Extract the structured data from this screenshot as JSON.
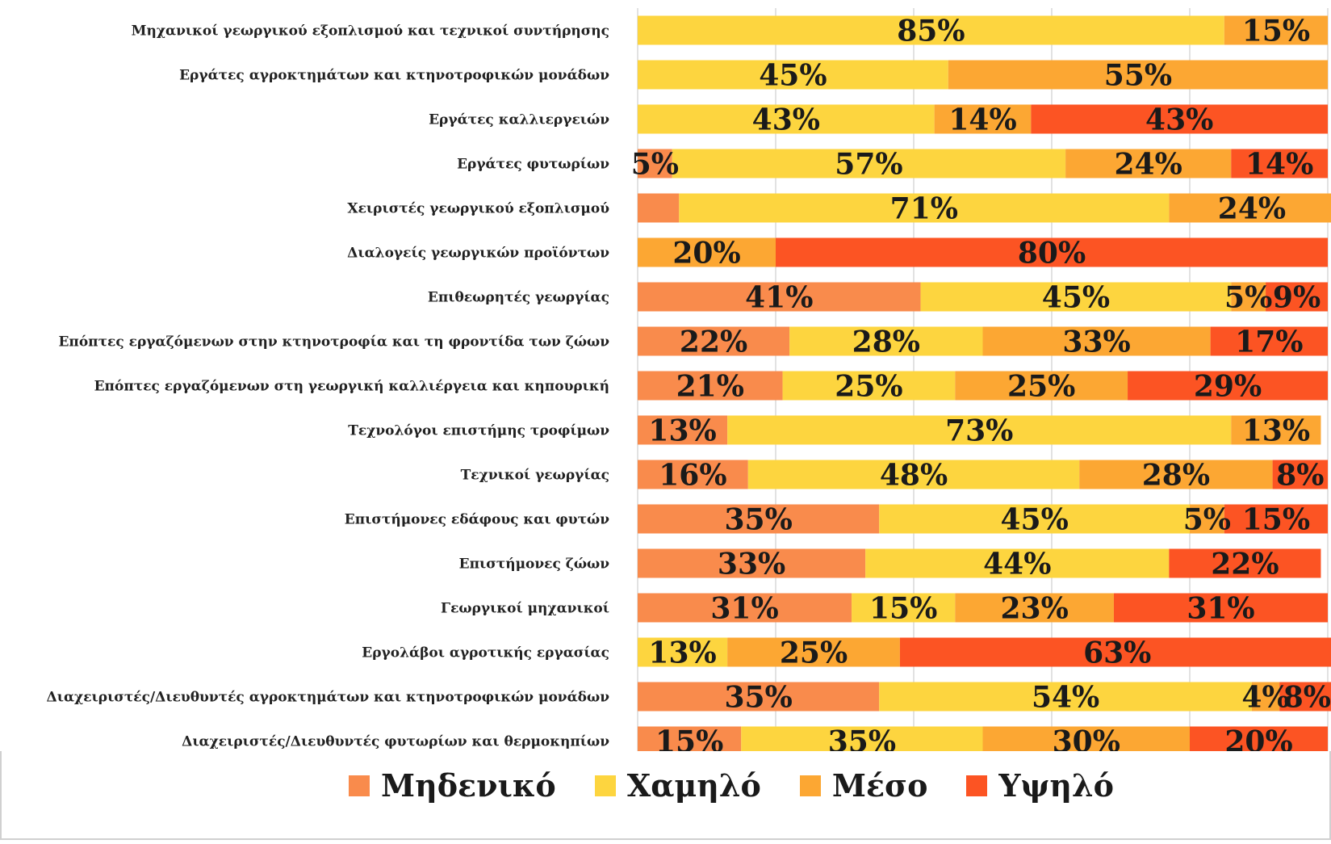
{
  "chart_data": {
    "type": "bar",
    "orientation": "horizontal",
    "stacked": true,
    "percent": true,
    "xlim": [
      0,
      100
    ],
    "grid": true,
    "legend_position": "bottom",
    "categories": [
      "Μηχανικοί γεωργικού εξοπλισμού και τεχνικοί συντήρησης",
      "Εργάτες αγροκτημάτων και κτηνοτροφικών μονάδων",
      "Εργάτες καλλιεργειών",
      "Εργάτες φυτωρίων",
      "Χειριστές γεωργικού εξοπλισμού",
      "Διαλογείς γεωργικών προϊόντων",
      "Επιθεωρητές γεωργίας",
      "Επόπτες εργαζόμενων στην κτηνοτροφία και τη φροντίδα των ζώων",
      "Επόπτες εργαζόμενων στη γεωργική καλλιέργεια και κηπουρική",
      "Τεχνολόγοι επιστήμης τροφίμων",
      "Τεχνικοί γεωργίας",
      "Επιστήμονες εδάφους και φυτών",
      "Επιστήμονες ζώων",
      "Γεωργικοί μηχανικοί",
      "Εργολάβοι αγροτικής εργασίας",
      "Διαχειριστές/Διευθυντές αγροκτημάτων και κτηνοτροφικών μονάδων",
      "Διαχειριστές/Διευθυντές φυτωρίων και θερμοκηπίων"
    ],
    "series": [
      {
        "name": "Μηδενικό",
        "color": "#f98b4c",
        "values": [
          0,
          0,
          0,
          5,
          6,
          0,
          41,
          22,
          21,
          13,
          16,
          35,
          33,
          31,
          0,
          35,
          15
        ]
      },
      {
        "name": "Χαμηλό",
        "color": "#fdd53f",
        "values": [
          85,
          45,
          43,
          57,
          71,
          0,
          45,
          28,
          25,
          73,
          48,
          45,
          44,
          15,
          13,
          54,
          35
        ]
      },
      {
        "name": "Μέσο",
        "color": "#fca733",
        "values": [
          15,
          55,
          14,
          24,
          24,
          20,
          5,
          33,
          25,
          13,
          28,
          5,
          0,
          23,
          25,
          4,
          30
        ]
      },
      {
        "name": "Υψηλό",
        "color": "#fc5423",
        "values": [
          0,
          0,
          43,
          14,
          0,
          80,
          9,
          17,
          29,
          0,
          8,
          15,
          22,
          31,
          63,
          8,
          20
        ]
      }
    ],
    "data_labels": [
      [
        "",
        "85%",
        "15%",
        ""
      ],
      [
        "",
        "45%",
        "55%",
        ""
      ],
      [
        "",
        "43%",
        "14%",
        "43%"
      ],
      [
        "5%",
        "57%",
        "24%",
        "14%"
      ],
      [
        "",
        "71%",
        "24%",
        ""
      ],
      [
        "",
        "",
        "20%",
        "80%"
      ],
      [
        "41%",
        "45%",
        "5%",
        "9%"
      ],
      [
        "22%",
        "28%",
        "33%",
        "17%"
      ],
      [
        "21%",
        "25%",
        "25%",
        "29%"
      ],
      [
        "13%",
        "73%",
        "13%",
        ""
      ],
      [
        "16%",
        "48%",
        "28%",
        "8%"
      ],
      [
        "35%",
        "45%",
        "5%",
        "15%"
      ],
      [
        "33%",
        "44%",
        "",
        "22%"
      ],
      [
        "31%",
        "15%",
        "23%",
        "31%"
      ],
      [
        "",
        "13%",
        "25%",
        "63%"
      ],
      [
        "35%",
        "54%",
        "4%",
        "8%"
      ],
      [
        "15%",
        "35%",
        "30%",
        "20%"
      ]
    ]
  }
}
